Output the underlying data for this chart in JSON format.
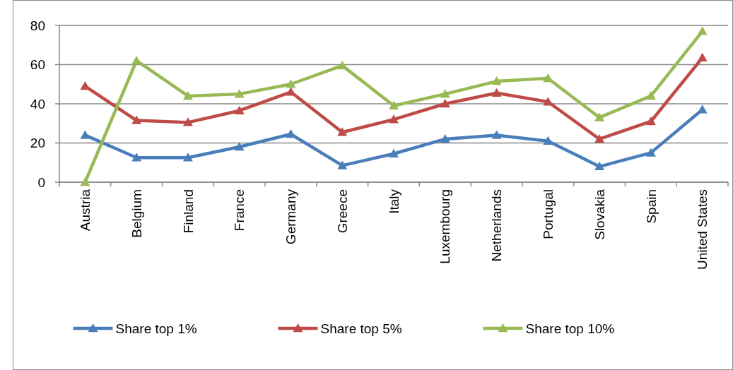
{
  "chart_data": {
    "type": "line",
    "categories": [
      "Austria",
      "Belgium",
      "Finland",
      "France",
      "Germany",
      "Greece",
      "Italy",
      "Luxembourg",
      "Netherlands",
      "Portugal",
      "Slovakia",
      "Spain",
      "United States"
    ],
    "series": [
      {
        "name": "Share top 1%",
        "color": "#4a7ebb",
        "values": [
          24,
          12.5,
          12.5,
          18,
          24.5,
          8.5,
          14.5,
          22,
          24,
          21,
          8,
          15,
          37
        ]
      },
      {
        "name": "Share top 5%",
        "color": "#be4b48",
        "values": [
          49,
          31.5,
          30.5,
          36.5,
          46,
          25.5,
          32,
          40,
          45.5,
          41,
          22,
          31,
          63.5
        ]
      },
      {
        "name": "Share top 10%",
        "color": "#98b954",
        "values": [
          0,
          62,
          44,
          45,
          50,
          59.5,
          39,
          45,
          51.5,
          53,
          33,
          44,
          77
        ]
      }
    ],
    "ylim": [
      0,
      80
    ],
    "yticks": [
      0,
      20,
      40,
      60,
      80
    ],
    "grid": "y",
    "legend": "bottom",
    "marker": "triangle",
    "line_style": "solid"
  }
}
